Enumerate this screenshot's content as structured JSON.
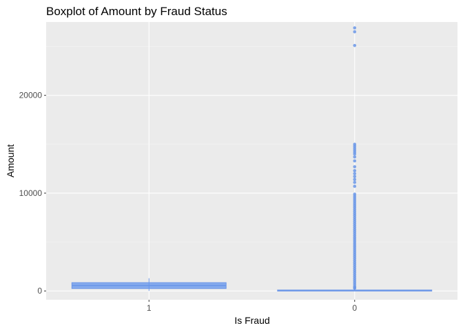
{
  "chart_data": {
    "type": "boxplot",
    "title": "Boxplot of Amount by Fraud Status",
    "xlabel": "Is Fraud",
    "ylabel": "Amount",
    "categories": [
      "1",
      "0"
    ],
    "ylim": [
      -900,
      27500
    ],
    "y_ticks": [
      0,
      10000,
      20000
    ],
    "y_tick_labels": [
      "0",
      "10000",
      "20000"
    ],
    "grid": true,
    "colors": {
      "panel": "#ebebeb",
      "grid_major": "#ffffff",
      "box_fill": "#6495ed",
      "box_line": "#6a96e8",
      "outlier": "#6a96e8"
    },
    "boxes": [
      {
        "category": "1",
        "q1": 250,
        "median": 550,
        "q3": 850,
        "whisker_low": 0,
        "whisker_high": 1300,
        "outliers": []
      },
      {
        "category": "0",
        "q1": 10,
        "median": 45,
        "q3": 95,
        "whisker_low": 0,
        "whisker_high": 225,
        "outliers": [
          26900,
          26500,
          25100,
          15000,
          14800,
          14600,
          14400,
          14200,
          14000,
          13700,
          13300,
          12700,
          12300,
          12000,
          11700,
          11400,
          11100,
          10700,
          9900,
          9700,
          9500,
          9300,
          9100,
          8900,
          8700,
          8500,
          8300,
          8100,
          7900,
          7700,
          7500,
          7300,
          7100,
          6900,
          6700,
          6500,
          6300,
          6100,
          5900,
          5700,
          5500,
          5300,
          5100,
          4900,
          4700,
          4500,
          4300,
          4100,
          3900,
          3700,
          3500,
          3300,
          3100,
          2900,
          2700,
          2500,
          2300,
          2100,
          1900,
          1700,
          1500,
          1300,
          1100,
          900,
          700,
          500,
          350,
          280
        ]
      }
    ]
  }
}
